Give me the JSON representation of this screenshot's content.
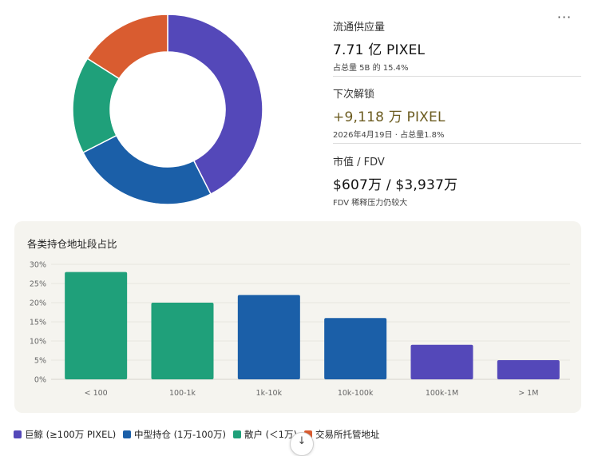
{
  "colors": {
    "whale": "#5448b9",
    "mid": "#1b5fa8",
    "retail": "#1fa07a",
    "exchange": "#d95c30"
  },
  "donut": {
    "segments": [
      {
        "key": "whale",
        "value": 0.425,
        "color": "#5448b9"
      },
      {
        "key": "mid",
        "value": 0.25,
        "color": "#1b5fa8"
      },
      {
        "key": "retail",
        "value": 0.165,
        "color": "#1fa07a"
      },
      {
        "key": "exchange",
        "value": 0.16,
        "color": "#d95c30"
      }
    ]
  },
  "menu": {
    "more_label": "···",
    "more_icon": "more-icon"
  },
  "stats": {
    "circulating": {
      "label": "流通供应量",
      "value": "7.71 亿 PIXEL",
      "sub": "占总量 5B 的 15.4%"
    },
    "unlock": {
      "label": "下次解锁",
      "value": "+9,118 万 PIXEL",
      "sub": "2026年4月19日 · 占总量1.8%"
    },
    "mcap": {
      "label": "市值 / FDV",
      "value": "$607万 / $3,937万",
      "sub": "FDV 稀释压力仍较大"
    }
  },
  "chart_data": {
    "type": "bar",
    "title": "各类持仓地址段占比",
    "categories": [
      "< 100",
      "100-1k",
      "1k-10k",
      "10k-100k",
      "100k-1M",
      "> 1M"
    ],
    "values": [
      28,
      20,
      22,
      16,
      9,
      5
    ],
    "bar_colors": [
      "#1fa07a",
      "#1fa07a",
      "#1b5fa8",
      "#1b5fa8",
      "#5448b9",
      "#5448b9"
    ],
    "ylim": [
      0,
      30
    ],
    "yticks": [
      0,
      5,
      10,
      15,
      20,
      25,
      30
    ],
    "ytick_labels": [
      "0%",
      "5%",
      "10%",
      "15%",
      "20%",
      "25%",
      "30%"
    ],
    "grid": true,
    "xlabel": "",
    "ylabel": ""
  },
  "legend": {
    "items": [
      {
        "label": "巨鲸 (≥100万 PIXEL)",
        "color": "#5448b9"
      },
      {
        "label": "中型持仓 (1万-100万)",
        "color": "#1b5fa8"
      },
      {
        "label": "散户 (＜1万)",
        "color": "#1fa07a"
      },
      {
        "label": "交易所托管地址",
        "color": "#d95c30"
      }
    ]
  },
  "scroll": {
    "label": "↓",
    "icon": "arrow-down-icon"
  }
}
